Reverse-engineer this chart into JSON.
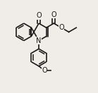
{
  "bg_color": "#f0ede8",
  "line_color": "#1a1a1a",
  "line_width": 1.2,
  "atoms": {
    "N": {
      "label": "N",
      "fontsize": 7
    },
    "O_ketone": {
      "label": "O",
      "fontsize": 7
    },
    "O_ester1": {
      "label": "O",
      "fontsize": 7
    },
    "O_ester2": {
      "label": "O",
      "fontsize": 7
    },
    "O_methoxy": {
      "label": "O",
      "fontsize": 7
    }
  },
  "figsize": [
    1.39,
    1.32
  ],
  "dpi": 100
}
